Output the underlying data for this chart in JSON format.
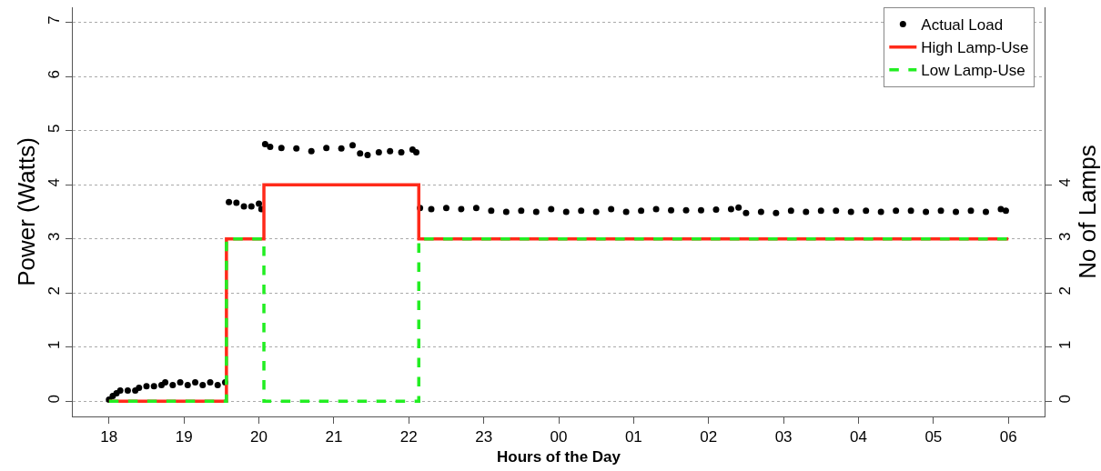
{
  "chart_data": {
    "type": "scatter",
    "xlabel": "Hours of the Day",
    "ylabel": "Power (Watts)",
    "y2label": "No of Lamps",
    "xlim": [
      "--01-01T17:31",
      "--01-02T06:29"
    ],
    "xticks": [
      {
        "value": "--01-01T18:00",
        "label": "18"
      },
      {
        "value": "--01-01T19:00",
        "label": "19"
      },
      {
        "value": "--01-01T20:00",
        "label": "20"
      },
      {
        "value": "--01-01T21:00",
        "label": "21"
      },
      {
        "value": "--01-01T22:00",
        "label": "22"
      },
      {
        "value": "--01-01T23:00",
        "label": "23"
      },
      {
        "value": "--01-02T00:00",
        "label": "00"
      },
      {
        "value": "--01-02T01:00",
        "label": "01"
      },
      {
        "value": "--01-02T02:00",
        "label": "02"
      },
      {
        "value": "--01-02T03:00",
        "label": "03"
      },
      {
        "value": "--01-02T04:00",
        "label": "04"
      },
      {
        "value": "--01-02T05:00",
        "label": "05"
      },
      {
        "value": "--01-02T06:00",
        "label": "06"
      }
    ],
    "ylim": [
      -0.28,
      7.28
    ],
    "yticks": [
      0,
      1,
      2,
      3,
      4,
      5,
      6,
      7
    ],
    "y2lim": [
      -0.28,
      7.28
    ],
    "y2ticks": [
      0,
      1,
      2,
      3,
      4
    ],
    "grid": "y",
    "legend": "top right",
    "series": [
      {
        "name": "Actual Load",
        "marker": "circle",
        "color": "#000000",
        "x": [
          "--01-01T18:00",
          "--01-01T18:03",
          "--01-01T18:06",
          "--01-01T18:09",
          "--01-01T18:15",
          "--01-01T18:21",
          "--01-01T18:24",
          "--01-01T18:30",
          "--01-01T18:36",
          "--01-01T18:42",
          "--01-01T18:45",
          "--01-01T18:51",
          "--01-01T18:57",
          "--01-01T19:03",
          "--01-01T19:09",
          "--01-01T19:15",
          "--01-01T19:21",
          "--01-01T19:27",
          "--01-01T19:33",
          "--01-01T19:36",
          "--01-01T19:42",
          "--01-01T19:48",
          "--01-01T19:54",
          "--01-01T20:00",
          "--01-01T20:02",
          "--01-01T20:05",
          "--01-01T20:09",
          "--01-01T20:18",
          "--01-01T20:30",
          "--01-01T20:42",
          "--01-01T20:54",
          "--01-01T21:06",
          "--01-01T21:15",
          "--01-01T21:21",
          "--01-01T21:27",
          "--01-01T21:36",
          "--01-01T21:45",
          "--01-01T21:54",
          "--01-01T22:03",
          "--01-01T22:06",
          "--01-01T22:09",
          "--01-01T22:18",
          "--01-01T22:30",
          "--01-01T22:42",
          "--01-01T22:54",
          "--01-01T23:06",
          "--01-01T23:18",
          "--01-01T23:30",
          "--01-01T23:42",
          "--01-01T23:54",
          "--01-02T00:06",
          "--01-02T00:18",
          "--01-02T00:30",
          "--01-02T00:42",
          "--01-02T00:54",
          "--01-02T01:06",
          "--01-02T01:18",
          "--01-02T01:30",
          "--01-02T01:42",
          "--01-02T01:54",
          "--01-02T02:06",
          "--01-02T02:18",
          "--01-02T02:24",
          "--01-02T02:30",
          "--01-02T02:42",
          "--01-02T02:54",
          "--01-02T03:06",
          "--01-02T03:18",
          "--01-02T03:30",
          "--01-02T03:42",
          "--01-02T03:54",
          "--01-02T04:06",
          "--01-02T04:18",
          "--01-02T04:30",
          "--01-02T04:42",
          "--01-02T04:54",
          "--01-02T05:06",
          "--01-02T05:18",
          "--01-02T05:30",
          "--01-02T05:42",
          "--01-02T05:54",
          "--01-02T05:58"
        ],
        "values": [
          0.03,
          0.1,
          0.15,
          0.2,
          0.2,
          0.2,
          0.25,
          0.28,
          0.28,
          0.3,
          0.35,
          0.3,
          0.35,
          0.3,
          0.35,
          0.3,
          0.35,
          0.3,
          0.35,
          3.68,
          3.67,
          3.6,
          3.6,
          3.65,
          3.55,
          4.75,
          4.7,
          4.68,
          4.67,
          4.62,
          4.68,
          4.67,
          4.73,
          4.58,
          4.55,
          4.6,
          4.62,
          4.6,
          4.65,
          4.6,
          3.57,
          3.55,
          3.57,
          3.55,
          3.57,
          3.52,
          3.5,
          3.52,
          3.5,
          3.55,
          3.5,
          3.52,
          3.5,
          3.55,
          3.5,
          3.52,
          3.55,
          3.53,
          3.53,
          3.53,
          3.54,
          3.55,
          3.58,
          3.48,
          3.5,
          3.48,
          3.52,
          3.5,
          3.52,
          3.52,
          3.5,
          3.52,
          3.5,
          3.52,
          3.52,
          3.5,
          3.52,
          3.5,
          3.52,
          3.5,
          3.55,
          3.52
        ]
      },
      {
        "name": "High Lamp-Use",
        "type": "step",
        "axis": "y2",
        "line_style": "solid",
        "color": "#ff2a1a",
        "x": [
          "--01-01T18:00",
          "--01-01T19:34",
          "--01-01T20:04",
          "--01-01T22:08",
          "--01-02T06:00"
        ],
        "values": [
          0,
          3,
          4,
          3,
          3
        ]
      },
      {
        "name": "Low Lamp-Use",
        "type": "step",
        "axis": "y2",
        "line_style": "dashed",
        "color": "#22ee22",
        "x": [
          "--01-01T18:00",
          "--01-01T19:34",
          "--01-01T20:04",
          "--01-01T22:08",
          "--01-02T06:00"
        ],
        "values": [
          0,
          3,
          0,
          3,
          3
        ]
      }
    ]
  }
}
